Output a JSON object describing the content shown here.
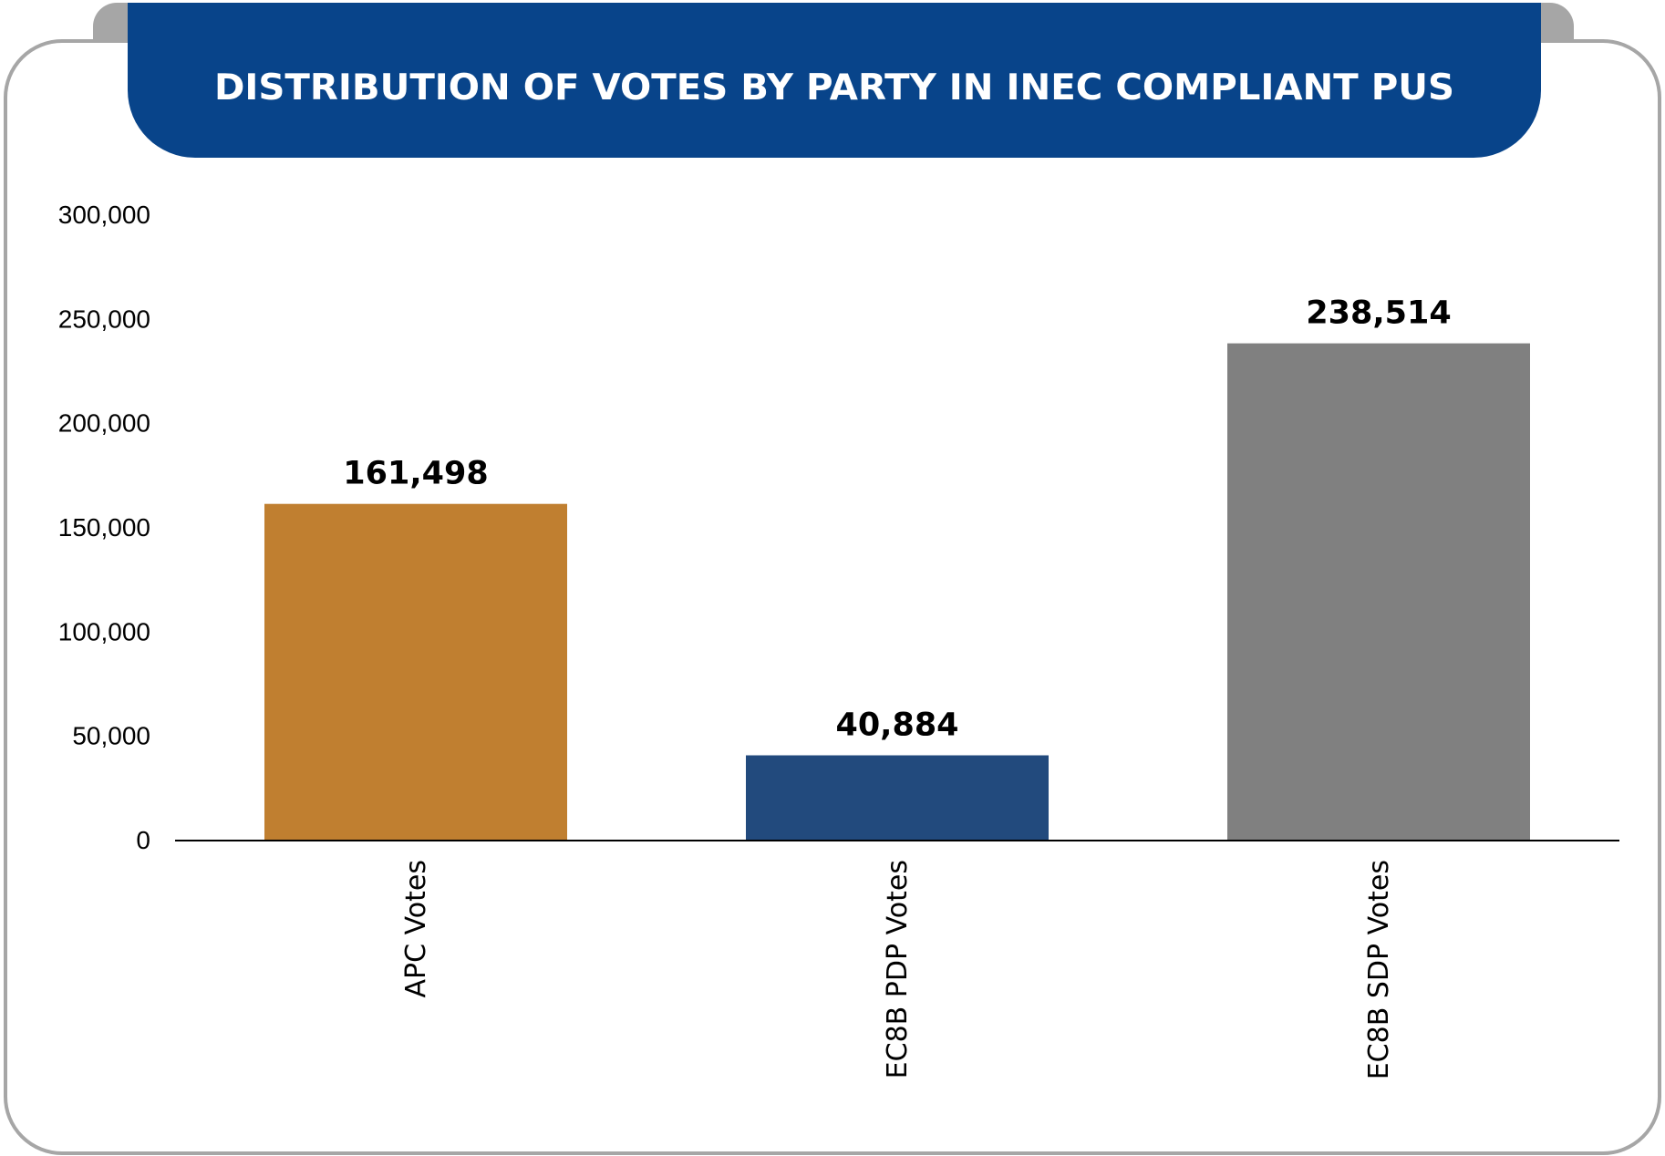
{
  "chart_data": {
    "type": "bar",
    "title": "DISTRIBUTION OF VOTES BY PARTY IN INEC COMPLIANT PUS",
    "categories": [
      "APC Votes",
      "EC8B PDP Votes",
      "EC8B SDP Votes"
    ],
    "values": [
      161498,
      40884,
      238514
    ],
    "value_labels": [
      "161,498",
      "40,884",
      "238,514"
    ],
    "colors": [
      "#C07F30",
      "#224A7D",
      "#808080"
    ],
    "ylim": [
      0,
      300000
    ],
    "yticks": [
      0,
      50000,
      100000,
      150000,
      200000,
      250000,
      300000
    ],
    "ytick_labels": [
      "0",
      "50,000",
      "100,000",
      "150,000",
      "200,000",
      "250,000",
      "300,000"
    ],
    "xlabel": "",
    "ylabel": "",
    "grid": false,
    "legend": "none"
  },
  "theme": {
    "title_bg": "#08448A",
    "frame_border": "#A6A6A6",
    "axis_color": "#000000"
  }
}
